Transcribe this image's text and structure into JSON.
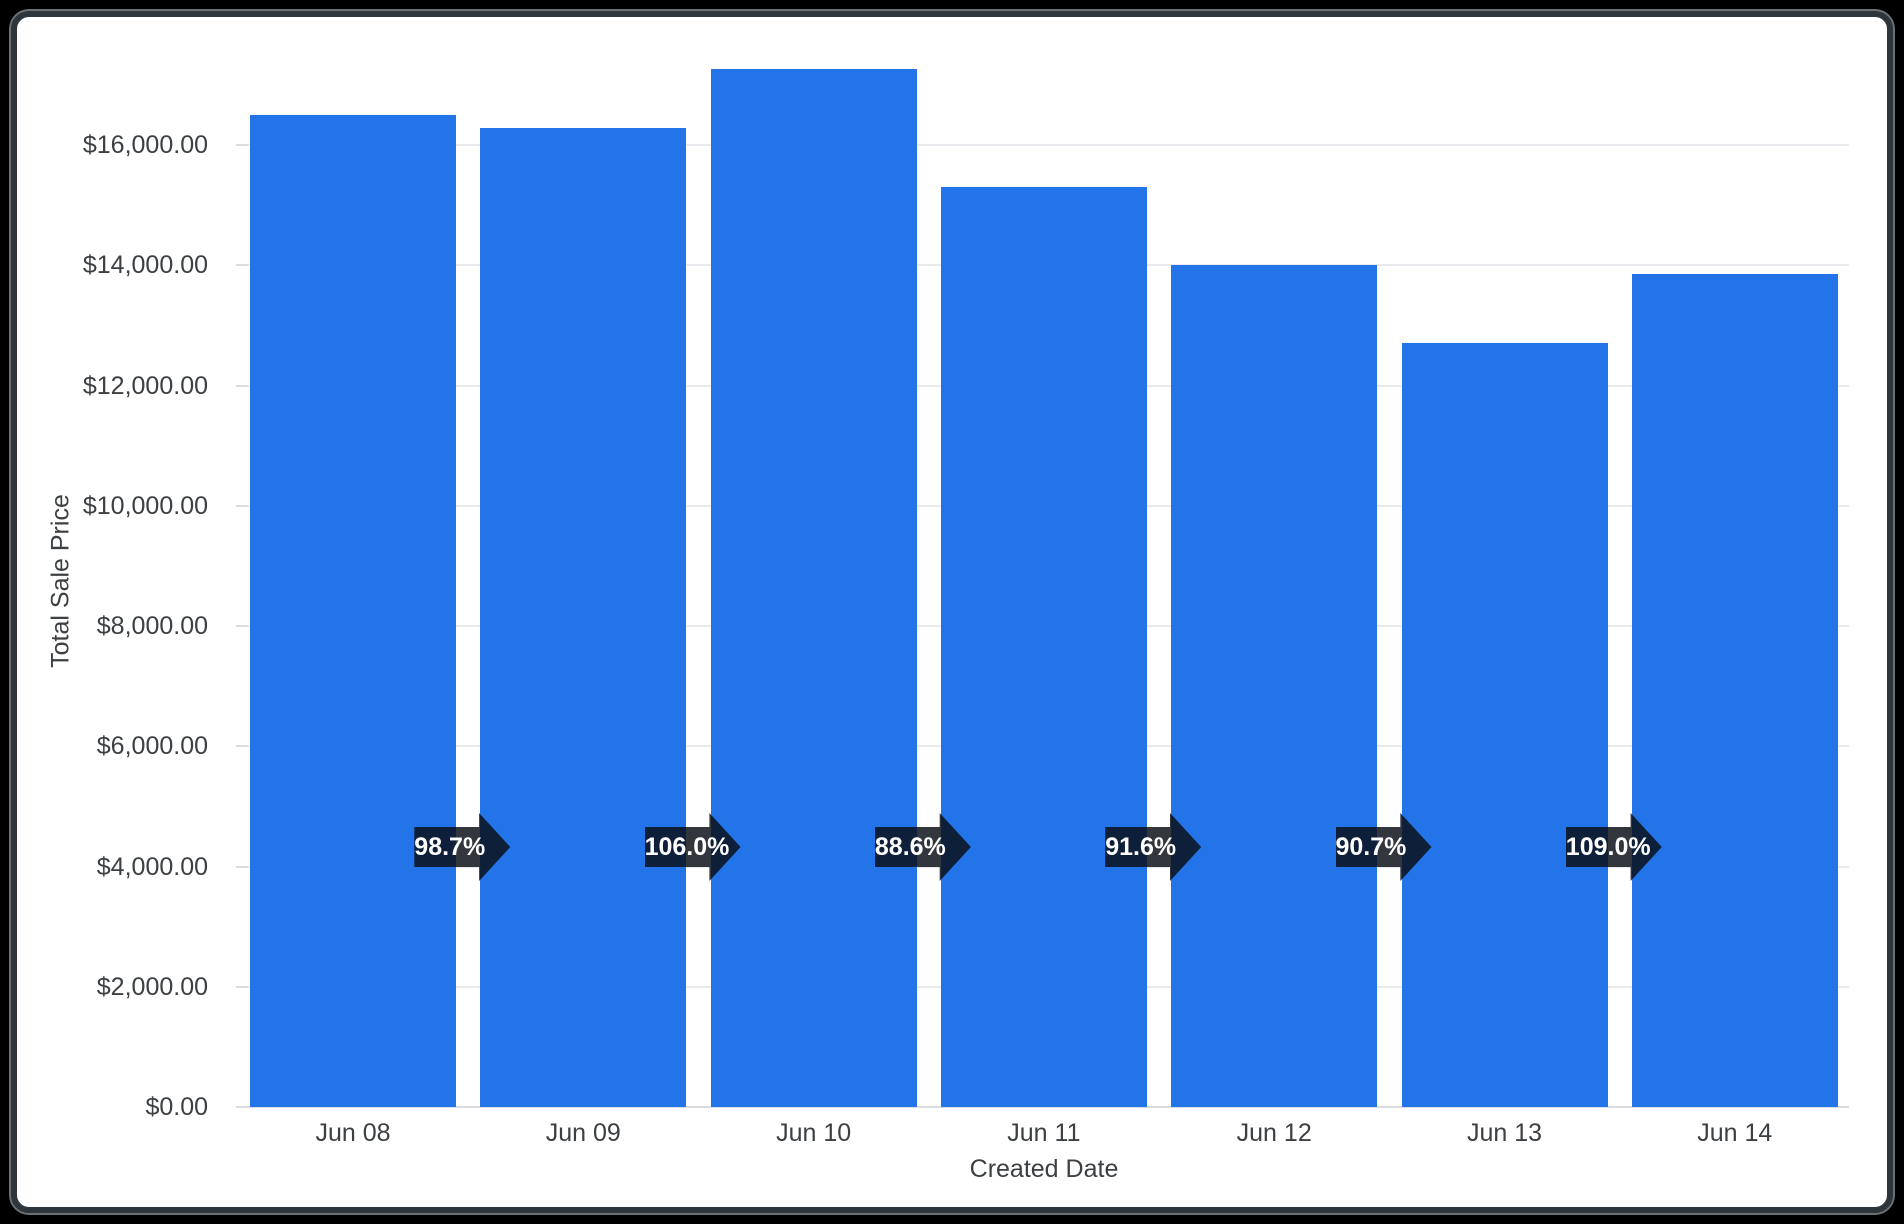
{
  "chart_data": {
    "type": "bar",
    "title": "",
    "xlabel": "Created Date",
    "ylabel": "Total Sale Price",
    "categories": [
      "Jun 08",
      "Jun 09",
      "Jun 10",
      "Jun 11",
      "Jun 12",
      "Jun 13",
      "Jun 14"
    ],
    "values": [
      16500,
      16290,
      17260,
      15300,
      14010,
      12710,
      13850
    ],
    "series_name": "Total Sale Price",
    "period_over_period_badges": [
      {
        "from": "Jun 08",
        "to": "Jun 09",
        "label": "98.7%",
        "pct": 98.7
      },
      {
        "from": "Jun 09",
        "to": "Jun 10",
        "label": "106.0%",
        "pct": 106.0
      },
      {
        "from": "Jun 10",
        "to": "Jun 11",
        "label": "88.6%",
        "pct": 88.6
      },
      {
        "from": "Jun 11",
        "to": "Jun 12",
        "label": "91.6%",
        "pct": 91.6
      },
      {
        "from": "Jun 12",
        "to": "Jun 13",
        "label": "90.7%",
        "pct": 90.7
      },
      {
        "from": "Jun 13",
        "to": "Jun 14",
        "label": "109.0%",
        "pct": 109.0
      }
    ],
    "y_ticks": [
      {
        "label": "$0.00",
        "value": 0
      },
      {
        "label": "$2,000.00",
        "value": 2000
      },
      {
        "label": "$4,000.00",
        "value": 4000
      },
      {
        "label": "$6,000.00",
        "value": 6000
      },
      {
        "label": "$8,000.00",
        "value": 8000
      },
      {
        "label": "$10,000.00",
        "value": 10000
      },
      {
        "label": "$12,000.00",
        "value": 12000
      },
      {
        "label": "$14,000.00",
        "value": 14000
      },
      {
        "label": "$16,000.00",
        "value": 16000
      }
    ],
    "ylim": [
      0,
      17500
    ],
    "grid": true,
    "legend": false,
    "colors": {
      "background": "#000000",
      "panel": "#ffffff",
      "panel_border": "#2e353b",
      "bar": "#2274e8",
      "gridline": "#e9ebee",
      "axis_line": "#d9dce0",
      "axis_text": "#3c4043",
      "badge_bg": "rgba(10,15,22,0.83)",
      "badge_text": "#ffffff"
    }
  }
}
